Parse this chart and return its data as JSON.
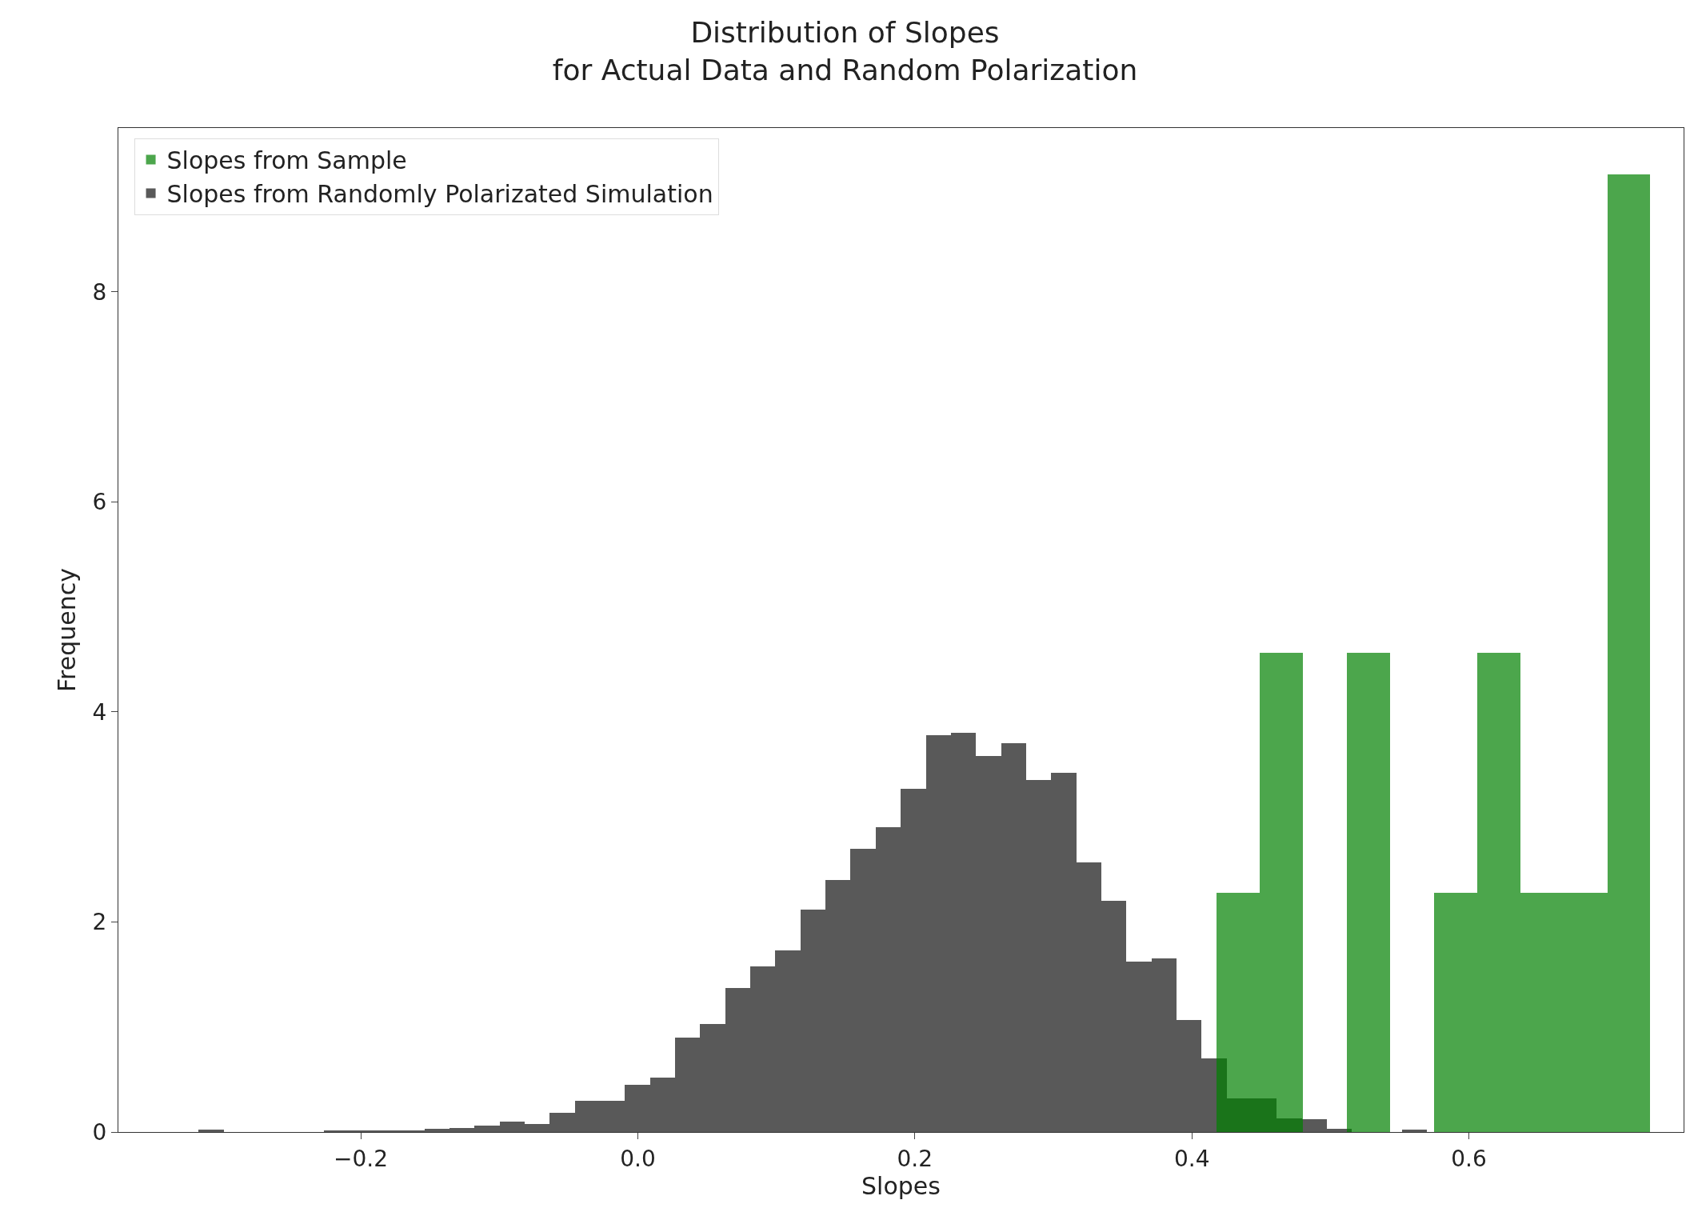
{
  "chart_data": {
    "type": "histogram",
    "title": "Distribution of Slopes\nfor Actual Data and Random Polarization",
    "xlabel": "Slopes",
    "ylabel": "Frequency",
    "series": [
      {
        "name": "Slopes from Randomly Polarizated Simulation",
        "color": "#595959",
        "values": [
          0.02,
          0,
          0,
          0,
          0,
          0.01,
          0.01,
          0.01,
          0.01,
          0.03,
          0.04,
          0.06,
          0.1,
          0.08,
          0.18,
          0.3,
          0.3,
          0.45,
          0.52,
          0.9,
          1.03,
          1.37,
          1.58,
          1.73,
          2.12,
          2.4,
          2.7,
          2.9,
          3.27,
          3.78,
          3.8,
          3.58,
          3.7,
          3.35,
          3.42,
          2.57,
          2.2,
          1.62,
          1.65,
          1.07,
          0.7,
          0.32,
          0.32,
          0.13,
          0.12,
          0.03,
          null,
          null,
          0.02
        ]
      },
      {
        "name": "Slopes from Sample",
        "color": "#4ca64c",
        "bins": [
          0.418,
          0.449,
          0.48,
          0.512,
          0.543,
          0.575,
          0.606,
          0.637,
          0.669,
          0.7,
          0.731
        ],
        "values": [
          2.28,
          4.56,
          0,
          4.56,
          0,
          2.28,
          4.56,
          2.28,
          2.28,
          9.12
        ]
      }
    ],
    "bins": [
      -0.317,
      -0.2989,
      -0.2808,
      -0.2627,
      -0.2446,
      -0.2265,
      -0.2084,
      -0.1903,
      -0.1722,
      -0.1541,
      -0.136,
      -0.1179,
      -0.0998,
      -0.0817,
      -0.0636,
      -0.0455,
      -0.0274,
      -0.0093,
      0.0088,
      0.0269,
      0.045,
      0.0631,
      0.0812,
      0.0993,
      0.1174,
      0.1355,
      0.1536,
      0.1717,
      0.1898,
      0.2079,
      0.226,
      0.2441,
      0.2622,
      0.2803,
      0.2984,
      0.3165,
      0.3346,
      0.3527,
      0.3708,
      0.3889,
      0.407,
      0.4251,
      0.4432,
      0.4613,
      0.4794,
      0.4975,
      0.5156,
      0.5337,
      0.5518,
      0.5699
    ],
    "xlim": [
      -0.375,
      0.755
    ],
    "xticks": [
      {
        "value": -0.2,
        "label": "−0.2"
      },
      {
        "value": 0.0,
        "label": "0.0"
      },
      {
        "value": 0.2,
        "label": "0.2"
      },
      {
        "value": 0.4,
        "label": "0.4"
      },
      {
        "value": 0.6,
        "label": "0.6"
      }
    ],
    "ylim": [
      0,
      9.56
    ],
    "yticks": [
      0,
      2,
      4,
      6,
      8
    ],
    "legend": "top left"
  }
}
